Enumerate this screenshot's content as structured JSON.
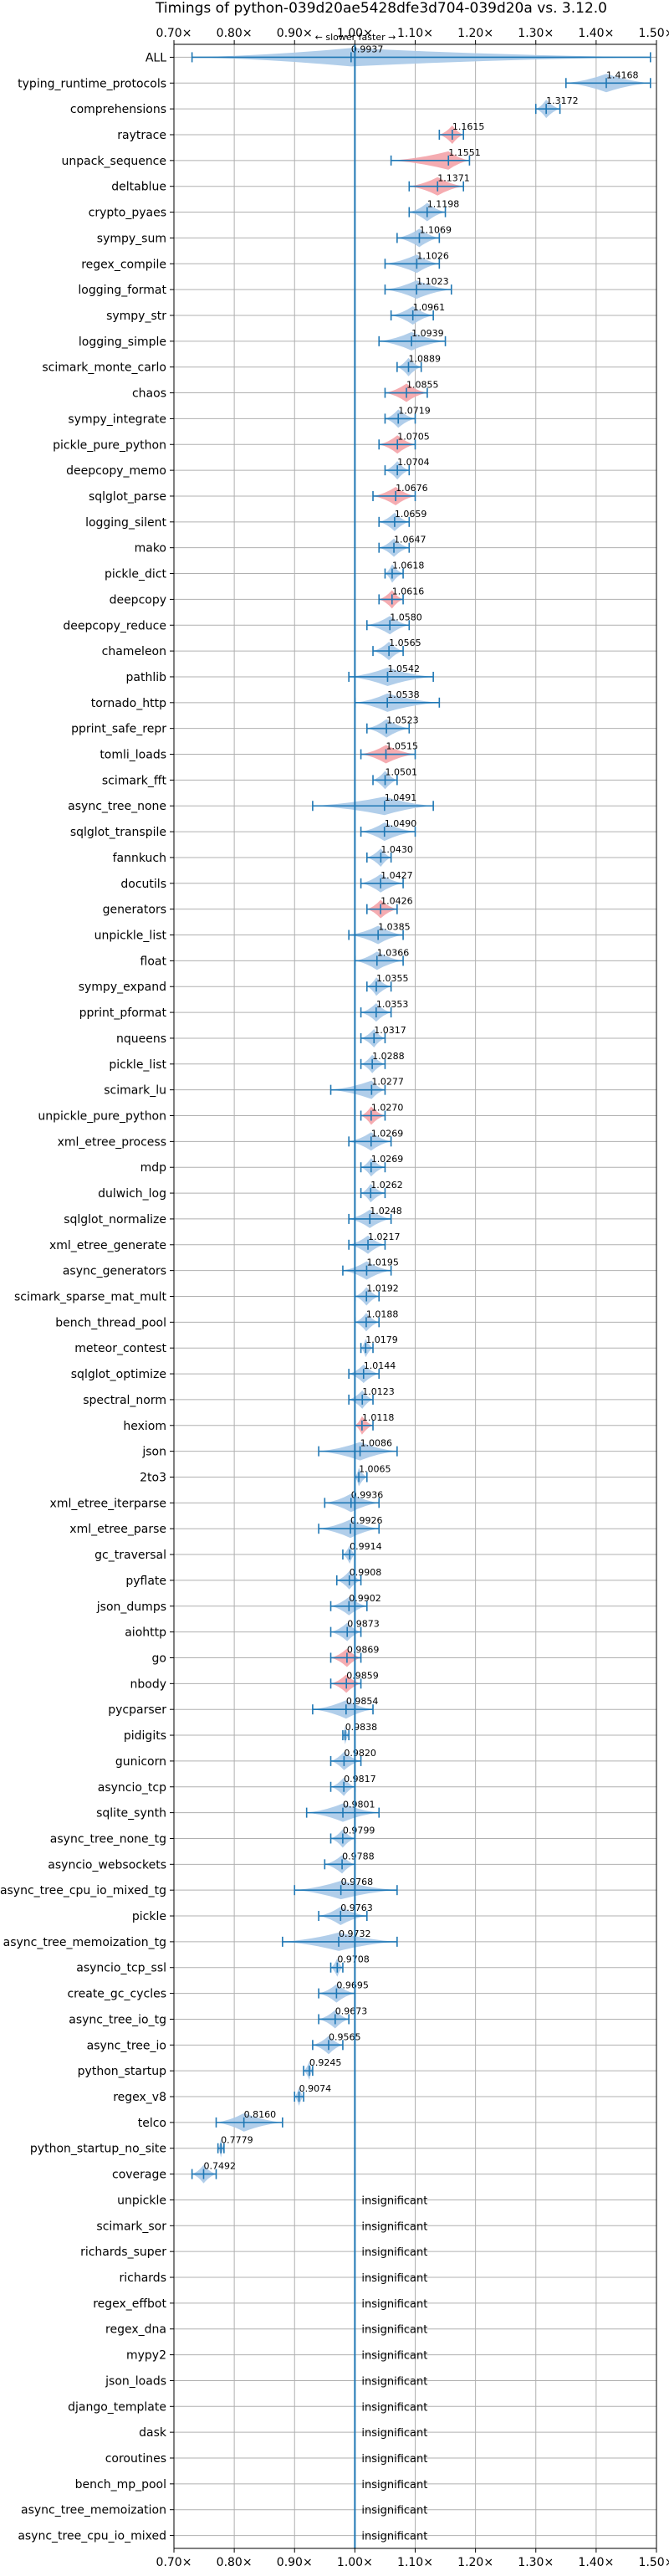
{
  "chart_data": {
    "type": "violin",
    "title": "Timings of python-039d20ae5428dfe3d704-039d20a vs. 3.12.0",
    "subtitle": "← slower    faster →",
    "xlim": [
      0.7,
      1.5
    ],
    "xticks": [
      0.7,
      0.8,
      0.9,
      1.0,
      1.1,
      1.2,
      1.3,
      1.4,
      1.5
    ],
    "xtick_labels": [
      "0.70×",
      "0.80×",
      "0.90×",
      "1.00×",
      "1.10×",
      "1.20×",
      "1.30×",
      "1.40×",
      "1.50×"
    ],
    "reference_line": 1.0,
    "grid": true,
    "colors": {
      "faster": "#a9c9e8",
      "slower": "#f4a3a8",
      "line": "#1f77b4",
      "grid": "#b0b0b0"
    },
    "insignificant_label": "insignificant",
    "benchmarks": [
      {
        "name": "ALL",
        "label": "0.9937",
        "value": 0.9937,
        "min": 0.73,
        "max": 1.49,
        "color": "faster"
      },
      {
        "name": "typing_runtime_protocols",
        "label": "1.4168",
        "value": 1.4168,
        "min": 1.35,
        "max": 1.49,
        "color": "faster"
      },
      {
        "name": "comprehensions",
        "label": "1.3172",
        "value": 1.3172,
        "min": 1.3,
        "max": 1.34,
        "color": "faster"
      },
      {
        "name": "raytrace",
        "label": "1.1615",
        "value": 1.1615,
        "min": 1.14,
        "max": 1.18,
        "color": "slower"
      },
      {
        "name": "unpack_sequence",
        "label": "1.1551",
        "value": 1.1551,
        "min": 1.06,
        "max": 1.19,
        "color": "slower"
      },
      {
        "name": "deltablue",
        "label": "1.1371",
        "value": 1.1371,
        "min": 1.09,
        "max": 1.18,
        "color": "slower"
      },
      {
        "name": "crypto_pyaes",
        "label": "1.1198",
        "value": 1.1198,
        "min": 1.09,
        "max": 1.15,
        "color": "faster"
      },
      {
        "name": "sympy_sum",
        "label": "1.1069",
        "value": 1.1069,
        "min": 1.07,
        "max": 1.14,
        "color": "faster"
      },
      {
        "name": "regex_compile",
        "label": "1.1026",
        "value": 1.1026,
        "min": 1.05,
        "max": 1.14,
        "color": "faster"
      },
      {
        "name": "logging_format",
        "label": "1.1023",
        "value": 1.1023,
        "min": 1.05,
        "max": 1.16,
        "color": "faster"
      },
      {
        "name": "sympy_str",
        "label": "1.0961",
        "value": 1.0961,
        "min": 1.06,
        "max": 1.13,
        "color": "faster"
      },
      {
        "name": "logging_simple",
        "label": "1.0939",
        "value": 1.0939,
        "min": 1.04,
        "max": 1.15,
        "color": "faster"
      },
      {
        "name": "scimark_monte_carlo",
        "label": "1.0889",
        "value": 1.0889,
        "min": 1.07,
        "max": 1.11,
        "color": "faster"
      },
      {
        "name": "chaos",
        "label": "1.0855",
        "value": 1.0855,
        "min": 1.05,
        "max": 1.12,
        "color": "slower"
      },
      {
        "name": "sympy_integrate",
        "label": "1.0719",
        "value": 1.0719,
        "min": 1.05,
        "max": 1.1,
        "color": "faster"
      },
      {
        "name": "pickle_pure_python",
        "label": "1.0705",
        "value": 1.0705,
        "min": 1.04,
        "max": 1.1,
        "color": "slower"
      },
      {
        "name": "deepcopy_memo",
        "label": "1.0704",
        "value": 1.0704,
        "min": 1.05,
        "max": 1.09,
        "color": "faster"
      },
      {
        "name": "sqlglot_parse",
        "label": "1.0676",
        "value": 1.0676,
        "min": 1.03,
        "max": 1.1,
        "color": "slower"
      },
      {
        "name": "logging_silent",
        "label": "1.0659",
        "value": 1.0659,
        "min": 1.04,
        "max": 1.09,
        "color": "faster"
      },
      {
        "name": "mako",
        "label": "1.0647",
        "value": 1.0647,
        "min": 1.04,
        "max": 1.09,
        "color": "faster"
      },
      {
        "name": "pickle_dict",
        "label": "1.0618",
        "value": 1.0618,
        "min": 1.05,
        "max": 1.08,
        "color": "faster"
      },
      {
        "name": "deepcopy",
        "label": "1.0616",
        "value": 1.0616,
        "min": 1.04,
        "max": 1.08,
        "color": "slower"
      },
      {
        "name": "deepcopy_reduce",
        "label": "1.0580",
        "value": 1.058,
        "min": 1.02,
        "max": 1.09,
        "color": "faster"
      },
      {
        "name": "chameleon",
        "label": "1.0565",
        "value": 1.0565,
        "min": 1.03,
        "max": 1.08,
        "color": "faster"
      },
      {
        "name": "pathlib",
        "label": "1.0542",
        "value": 1.0542,
        "min": 0.99,
        "max": 1.13,
        "color": "faster"
      },
      {
        "name": "tornado_http",
        "label": "1.0538",
        "value": 1.0538,
        "min": 1.0,
        "max": 1.14,
        "color": "faster"
      },
      {
        "name": "pprint_safe_repr",
        "label": "1.0523",
        "value": 1.0523,
        "min": 1.02,
        "max": 1.09,
        "color": "faster"
      },
      {
        "name": "tomli_loads",
        "label": "1.0515",
        "value": 1.0515,
        "min": 1.01,
        "max": 1.1,
        "color": "slower"
      },
      {
        "name": "scimark_fft",
        "label": "1.0501",
        "value": 1.0501,
        "min": 1.03,
        "max": 1.07,
        "color": "faster"
      },
      {
        "name": "async_tree_none",
        "label": "1.0491",
        "value": 1.0491,
        "min": 0.93,
        "max": 1.13,
        "color": "faster"
      },
      {
        "name": "sqlglot_transpile",
        "label": "1.0490",
        "value": 1.049,
        "min": 1.01,
        "max": 1.1,
        "color": "faster"
      },
      {
        "name": "fannkuch",
        "label": "1.0430",
        "value": 1.043,
        "min": 1.02,
        "max": 1.06,
        "color": "faster"
      },
      {
        "name": "docutils",
        "label": "1.0427",
        "value": 1.0427,
        "min": 1.01,
        "max": 1.08,
        "color": "faster"
      },
      {
        "name": "generators",
        "label": "1.0426",
        "value": 1.0426,
        "min": 1.02,
        "max": 1.07,
        "color": "slower"
      },
      {
        "name": "unpickle_list",
        "label": "1.0385",
        "value": 1.0385,
        "min": 0.99,
        "max": 1.08,
        "color": "faster"
      },
      {
        "name": "float",
        "label": "1.0366",
        "value": 1.0366,
        "min": 1.0,
        "max": 1.08,
        "color": "faster"
      },
      {
        "name": "sympy_expand",
        "label": "1.0355",
        "value": 1.0355,
        "min": 1.02,
        "max": 1.06,
        "color": "faster"
      },
      {
        "name": "pprint_pformat",
        "label": "1.0353",
        "value": 1.0353,
        "min": 1.01,
        "max": 1.06,
        "color": "faster"
      },
      {
        "name": "nqueens",
        "label": "1.0317",
        "value": 1.0317,
        "min": 1.01,
        "max": 1.05,
        "color": "faster"
      },
      {
        "name": "pickle_list",
        "label": "1.0288",
        "value": 1.0288,
        "min": 1.01,
        "max": 1.05,
        "color": "faster"
      },
      {
        "name": "scimark_lu",
        "label": "1.0277",
        "value": 1.0277,
        "min": 0.96,
        "max": 1.05,
        "color": "faster"
      },
      {
        "name": "unpickle_pure_python",
        "label": "1.0270",
        "value": 1.027,
        "min": 1.01,
        "max": 1.05,
        "color": "slower"
      },
      {
        "name": "xml_etree_process",
        "label": "1.0269",
        "value": 1.0269,
        "min": 0.99,
        "max": 1.06,
        "color": "faster"
      },
      {
        "name": "mdp",
        "label": "1.0269",
        "value": 1.0269,
        "min": 1.01,
        "max": 1.05,
        "color": "faster"
      },
      {
        "name": "dulwich_log",
        "label": "1.0262",
        "value": 1.0262,
        "min": 1.01,
        "max": 1.05,
        "color": "faster"
      },
      {
        "name": "sqlglot_normalize",
        "label": "1.0248",
        "value": 1.0248,
        "min": 0.99,
        "max": 1.06,
        "color": "faster"
      },
      {
        "name": "xml_etree_generate",
        "label": "1.0217",
        "value": 1.0217,
        "min": 0.99,
        "max": 1.05,
        "color": "faster"
      },
      {
        "name": "async_generators",
        "label": "1.0195",
        "value": 1.0195,
        "min": 0.98,
        "max": 1.06,
        "color": "faster"
      },
      {
        "name": "scimark_sparse_mat_mult",
        "label": "1.0192",
        "value": 1.0192,
        "min": 1.0,
        "max": 1.04,
        "color": "faster"
      },
      {
        "name": "bench_thread_pool",
        "label": "1.0188",
        "value": 1.0188,
        "min": 1.0,
        "max": 1.04,
        "color": "faster"
      },
      {
        "name": "meteor_contest",
        "label": "1.0179",
        "value": 1.0179,
        "min": 1.01,
        "max": 1.03,
        "color": "faster"
      },
      {
        "name": "sqlglot_optimize",
        "label": "1.0144",
        "value": 1.0144,
        "min": 0.99,
        "max": 1.04,
        "color": "faster"
      },
      {
        "name": "spectral_norm",
        "label": "1.0123",
        "value": 1.0123,
        "min": 0.99,
        "max": 1.03,
        "color": "faster"
      },
      {
        "name": "hexiom",
        "label": "1.0118",
        "value": 1.0118,
        "min": 1.0,
        "max": 1.03,
        "color": "slower"
      },
      {
        "name": "json",
        "label": "1.0086",
        "value": 1.0086,
        "min": 0.94,
        "max": 1.07,
        "color": "faster"
      },
      {
        "name": "2to3",
        "label": "1.0065",
        "value": 1.0065,
        "min": 1.0,
        "max": 1.02,
        "color": "faster"
      },
      {
        "name": "xml_etree_iterparse",
        "label": "0.9936",
        "value": 0.9936,
        "min": 0.95,
        "max": 1.04,
        "color": "faster"
      },
      {
        "name": "xml_etree_parse",
        "label": "0.9926",
        "value": 0.9926,
        "min": 0.94,
        "max": 1.04,
        "color": "faster"
      },
      {
        "name": "gc_traversal",
        "label": "0.9914",
        "value": 0.9914,
        "min": 0.98,
        "max": 1.0,
        "color": "faster"
      },
      {
        "name": "pyflate",
        "label": "0.9908",
        "value": 0.9908,
        "min": 0.97,
        "max": 1.01,
        "color": "faster"
      },
      {
        "name": "json_dumps",
        "label": "0.9902",
        "value": 0.9902,
        "min": 0.96,
        "max": 1.02,
        "color": "faster"
      },
      {
        "name": "aiohttp",
        "label": "0.9873",
        "value": 0.9873,
        "min": 0.96,
        "max": 1.01,
        "color": "faster"
      },
      {
        "name": "go",
        "label": "0.9869",
        "value": 0.9869,
        "min": 0.96,
        "max": 1.01,
        "color": "slower"
      },
      {
        "name": "nbody",
        "label": "0.9859",
        "value": 0.9859,
        "min": 0.96,
        "max": 1.01,
        "color": "slower"
      },
      {
        "name": "pycparser",
        "label": "0.9854",
        "value": 0.9854,
        "min": 0.93,
        "max": 1.03,
        "color": "faster"
      },
      {
        "name": "pidigits",
        "label": "0.9838",
        "value": 0.9838,
        "min": 0.98,
        "max": 0.99,
        "color": "faster"
      },
      {
        "name": "gunicorn",
        "label": "0.9820",
        "value": 0.982,
        "min": 0.96,
        "max": 1.01,
        "color": "faster"
      },
      {
        "name": "asyncio_tcp",
        "label": "0.9817",
        "value": 0.9817,
        "min": 0.96,
        "max": 1.0,
        "color": "faster"
      },
      {
        "name": "sqlite_synth",
        "label": "0.9801",
        "value": 0.9801,
        "min": 0.92,
        "max": 1.04,
        "color": "faster"
      },
      {
        "name": "async_tree_none_tg",
        "label": "0.9799",
        "value": 0.9799,
        "min": 0.96,
        "max": 1.0,
        "color": "faster"
      },
      {
        "name": "asyncio_websockets",
        "label": "0.9788",
        "value": 0.9788,
        "min": 0.95,
        "max": 1.0,
        "color": "faster"
      },
      {
        "name": "async_tree_cpu_io_mixed_tg",
        "label": "0.9768",
        "value": 0.9768,
        "min": 0.9,
        "max": 1.07,
        "color": "faster"
      },
      {
        "name": "pickle",
        "label": "0.9763",
        "value": 0.9763,
        "min": 0.94,
        "max": 1.02,
        "color": "faster"
      },
      {
        "name": "async_tree_memoization_tg",
        "label": "0.9732",
        "value": 0.9732,
        "min": 0.88,
        "max": 1.07,
        "color": "faster"
      },
      {
        "name": "asyncio_tcp_ssl",
        "label": "0.9708",
        "value": 0.9708,
        "min": 0.96,
        "max": 0.98,
        "color": "faster"
      },
      {
        "name": "create_gc_cycles",
        "label": "0.9695",
        "value": 0.9695,
        "min": 0.94,
        "max": 1.0,
        "color": "faster"
      },
      {
        "name": "async_tree_io_tg",
        "label": "0.9673",
        "value": 0.9673,
        "min": 0.94,
        "max": 0.99,
        "color": "faster"
      },
      {
        "name": "async_tree_io",
        "label": "0.9565",
        "value": 0.9565,
        "min": 0.93,
        "max": 0.98,
        "color": "faster"
      },
      {
        "name": "python_startup",
        "label": "0.9245",
        "value": 0.9245,
        "min": 0.915,
        "max": 0.93,
        "color": "faster"
      },
      {
        "name": "regex_v8",
        "label": "0.9074",
        "value": 0.9074,
        "min": 0.9,
        "max": 0.915,
        "color": "faster"
      },
      {
        "name": "telco",
        "label": "0.8160",
        "value": 0.816,
        "min": 0.77,
        "max": 0.88,
        "color": "faster"
      },
      {
        "name": "python_startup_no_site",
        "label": "0.7779",
        "value": 0.7779,
        "min": 0.773,
        "max": 0.783,
        "color": "faster"
      },
      {
        "name": "coverage",
        "label": "0.7492",
        "value": 0.7492,
        "min": 0.73,
        "max": 0.77,
        "color": "faster"
      },
      {
        "name": "unpickle",
        "insignificant": true
      },
      {
        "name": "scimark_sor",
        "insignificant": true
      },
      {
        "name": "richards_super",
        "insignificant": true
      },
      {
        "name": "richards",
        "insignificant": true
      },
      {
        "name": "regex_effbot",
        "insignificant": true
      },
      {
        "name": "regex_dna",
        "insignificant": true
      },
      {
        "name": "mypy2",
        "insignificant": true
      },
      {
        "name": "json_loads",
        "insignificant": true
      },
      {
        "name": "django_template",
        "insignificant": true
      },
      {
        "name": "dask",
        "insignificant": true
      },
      {
        "name": "coroutines",
        "insignificant": true
      },
      {
        "name": "bench_mp_pool",
        "insignificant": true
      },
      {
        "name": "async_tree_memoization",
        "insignificant": true
      },
      {
        "name": "async_tree_cpu_io_mixed",
        "insignificant": true
      }
    ]
  }
}
